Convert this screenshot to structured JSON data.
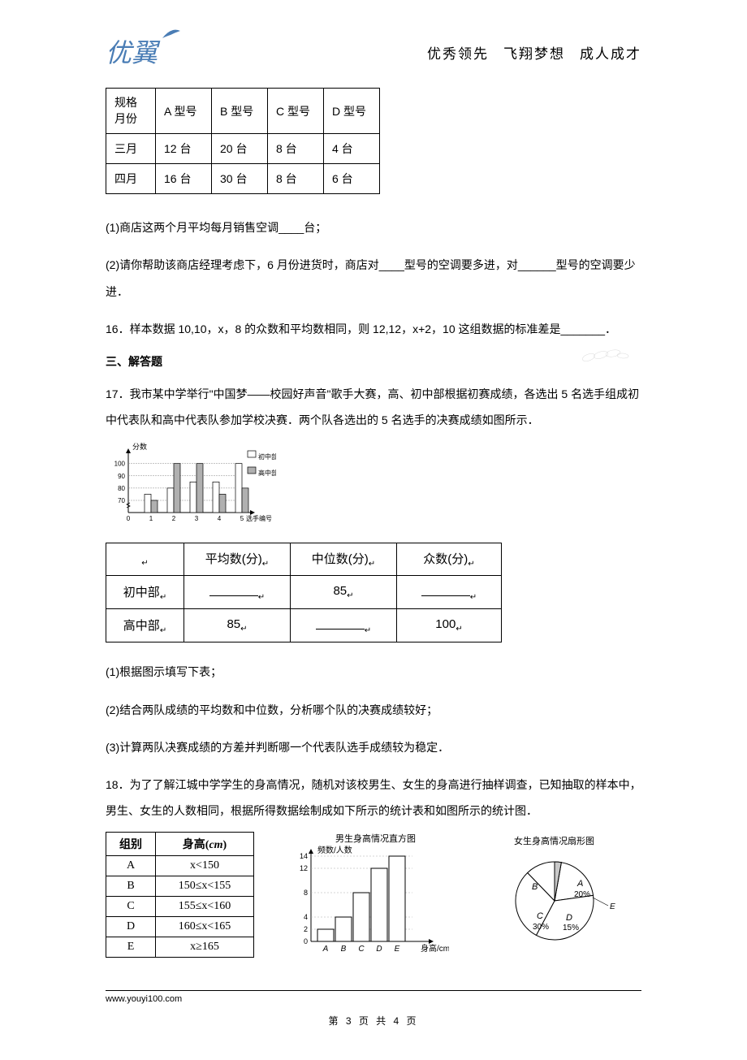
{
  "header": {
    "logo_text": "优翼",
    "slogan_1": "优秀领先",
    "slogan_2": "飞翔梦想",
    "slogan_3": "成人成才"
  },
  "table1": {
    "header_spec": "规格\n月份",
    "col_A": "A 型号",
    "col_B": "B 型号",
    "col_C": "C 型号",
    "col_D": "D 型号",
    "row1_label": "三月",
    "row1_A": "12 台",
    "row1_B": "20 台",
    "row1_C": "8 台",
    "row1_D": "4 台",
    "row2_label": "四月",
    "row2_A": "16 台",
    "row2_B": "30 台",
    "row2_C": "8 台",
    "row2_D": "6 台"
  },
  "q15_1": "(1)商店这两个月平均每月销售空调____台；",
  "q15_2": "(2)请你帮助该商店经理考虑下，6 月份进货时，商店对____型号的空调要多进，对______型号的空调要少进．",
  "q16": "16．样本数据 10,10，x，8 的众数和平均数相同，则 12,12，x+2，10 这组数据的标准差是_______．",
  "section3": "三、解答题",
  "q17_intro": "17．我市某中学举行\"中国梦——校园好声音\"歌手大赛，高、初中部根据初赛成绩，各选出 5 名选手组成初中代表队和高中代表队参加学校决赛．两个队各选出的 5 名选手的决赛成绩如图所示．",
  "bar_chart": {
    "y_axis_label": "分数",
    "y_ticks": [
      70,
      80,
      90,
      100
    ],
    "x_ticks": [
      0,
      1,
      2,
      3,
      4,
      5
    ],
    "x_label": "选手编号",
    "legend_1": "初中部",
    "legend_2": "高中部",
    "junior_values": [
      75,
      80,
      85,
      85,
      100
    ],
    "senior_values": [
      70,
      100,
      100,
      75,
      80
    ],
    "junior_color": "#ffffff",
    "senior_color": "#b0b0b0",
    "grid_color": "#888888"
  },
  "stats_table": {
    "h1": "",
    "h2": "平均数(分)",
    "h3": "中位数(分)",
    "h4": "众数(分)",
    "r1_1": "初中部",
    "r1_2": "______",
    "r1_3": "85",
    "r1_4": "______",
    "r2_1": "高中部",
    "r2_2": "85",
    "r2_3": "______",
    "r2_4": "100"
  },
  "q17_1": "(1)根据图示填写下表；",
  "q17_2": "(2)结合两队成绩的平均数和中位数，分析哪个队的决赛成绩较好；",
  "q17_3": "(3)计算两队决赛成绩的方差并判断哪一个代表队选手成绩较为稳定．",
  "q18_intro": "18．为了了解江城中学学生的身高情况，随机对该校男生、女生的身高进行抽样调查，已知抽取的样本中，男生、女生的人数相同，根据所得数据绘制成如下所示的统计表和如图所示的统计图．",
  "group_table": {
    "h1": "组别",
    "h2": "身高(cm)",
    "rows": [
      [
        "A",
        "x<150"
      ],
      [
        "B",
        "150≤x<155"
      ],
      [
        "C",
        "155≤x<160"
      ],
      [
        "D",
        "160≤x<165"
      ],
      [
        "E",
        "x≥165"
      ]
    ]
  },
  "histogram": {
    "title": "男生身高情况直方图",
    "y_label": "频数/人数",
    "y_ticks": [
      0,
      2,
      4,
      8,
      12,
      14
    ],
    "x_labels": [
      "A",
      "B",
      "C",
      "D",
      "E"
    ],
    "x_label": "身高/cm",
    "values": [
      2,
      4,
      8,
      12,
      14
    ]
  },
  "pie": {
    "title": "女生身高情况扇形图",
    "slices": [
      {
        "label": "A",
        "pct": "20%",
        "angle_start": 0,
        "angle_end": 72,
        "color": "#ffffff"
      },
      {
        "label": "B",
        "pct": "",
        "angle_start": 72,
        "angle_end": 198,
        "color": "#ffffff"
      },
      {
        "label": "C",
        "pct": "30%",
        "angle_start": 198,
        "angle_end": 306,
        "color": "#ffffff"
      },
      {
        "label": "D",
        "pct": "15%",
        "angle_start": 306,
        "angle_end": 360,
        "color": "#ffffff"
      },
      {
        "label": "E",
        "pct": "",
        "angle_start": 360,
        "angle_end": 378,
        "color": "#c0c0c0"
      }
    ]
  },
  "footer_url": "www.youyi100.com",
  "page_num": "第 3 页 共 4 页"
}
